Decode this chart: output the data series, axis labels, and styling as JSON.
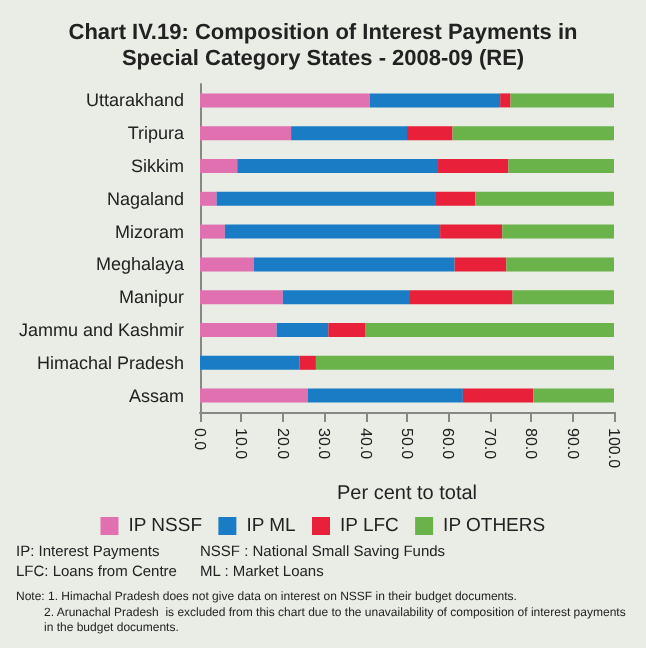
{
  "chart_data": {
    "type": "bar",
    "orientation": "horizontal",
    "stacked": true,
    "title": "Chart IV.19: Composition of Interest Payments in\nSpecial Category States - 2008-09 (RE)",
    "xlabel": "Per cent to total",
    "categories": [
      "Uttarakhand",
      "Tripura",
      "Sikkim",
      "Nagaland",
      "Mizoram",
      "Meghalaya",
      "Manipur",
      "Jammu and Kashmir",
      "Himachal Pradesh",
      "Assam"
    ],
    "series": [
      {
        "name": "IP NSSF",
        "color": "#e070b0",
        "values": [
          41,
          22,
          9,
          4,
          6,
          13,
          20,
          18.5,
          0,
          26
        ]
      },
      {
        "name": "IP ML",
        "color": "#1a7cc4",
        "values": [
          31.5,
          28,
          48.5,
          53,
          52,
          48.5,
          30.5,
          12.5,
          24,
          37.5
        ]
      },
      {
        "name": "IP LFC",
        "color": "#e8203a",
        "values": [
          2.5,
          11,
          17,
          9.5,
          15,
          12.5,
          25,
          9,
          4,
          17
        ]
      },
      {
        "name": "IP OTHERS",
        "color": "#6ab24a",
        "values": [
          25,
          39,
          25.5,
          33.5,
          27,
          26,
          24.5,
          60,
          72,
          19.5
        ]
      }
    ],
    "xlim": [
      0,
      100
    ],
    "xticks": [
      {
        "value": 0,
        "label": "0.0"
      },
      {
        "value": 10,
        "label": "10.0"
      },
      {
        "value": 20,
        "label": "20.0"
      },
      {
        "value": 30,
        "label": "30.0"
      },
      {
        "value": 40,
        "label": "40.0"
      },
      {
        "value": 50,
        "label": "50.0"
      },
      {
        "value": 60,
        "label": "60.0"
      },
      {
        "value": 70,
        "label": "70.0"
      },
      {
        "value": 80,
        "label": "80.0"
      },
      {
        "value": 90,
        "label": "90.0"
      },
      {
        "value": 100,
        "label": "100.0"
      }
    ],
    "grid": false,
    "legend": "bottom",
    "annotations": [
      "IP: Interest Payments",
      "NSSF : National Small Saving Funds",
      "LFC: Loans from Centre",
      "ML : Market Loans",
      "Note: 1. Himachal Pradesh does not give data on interest on NSSF in their budget documents.",
      "2. Arunachal Pradesh  is excluded from this chart due to the unavailability of composition of interest payments in the budget documents."
    ]
  }
}
